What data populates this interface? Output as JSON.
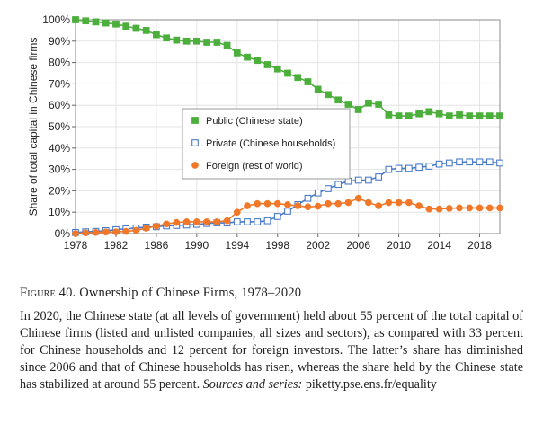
{
  "chart_data": {
    "type": "line",
    "ylabel": "Share of total capital in Chinese firms",
    "ylim": [
      0,
      100
    ],
    "yticks": [
      "0%",
      "10%",
      "20%",
      "30%",
      "40%",
      "50%",
      "60%",
      "70%",
      "80%",
      "90%",
      "100%"
    ],
    "xlim": [
      1978,
      2020
    ],
    "xticks": [
      "1978",
      "1982",
      "1986",
      "1990",
      "1994",
      "1998",
      "2002",
      "2006",
      "2010",
      "2014",
      "2018"
    ],
    "x": [
      1978,
      1979,
      1980,
      1981,
      1982,
      1983,
      1984,
      1985,
      1986,
      1987,
      1988,
      1989,
      1990,
      1991,
      1992,
      1993,
      1994,
      1995,
      1996,
      1997,
      1998,
      1999,
      2000,
      2001,
      2002,
      2003,
      2004,
      2005,
      2006,
      2007,
      2008,
      2009,
      2010,
      2011,
      2012,
      2013,
      2014,
      2015,
      2016,
      2017,
      2018,
      2019,
      2020
    ],
    "series": [
      {
        "name": "Public (Chinese state)",
        "color": "#4caf3c",
        "marker": "square-filled",
        "values": [
          100,
          99.5,
          99,
          98.5,
          98,
          97,
          96,
          95,
          93,
          91.5,
          90.5,
          90,
          90,
          89.5,
          89.5,
          88,
          84.5,
          82.5,
          81,
          79,
          77,
          75,
          73,
          71,
          67.5,
          65,
          62.5,
          60.5,
          58,
          61,
          60.5,
          55.5,
          55,
          55,
          56,
          57,
          56,
          55,
          55.5,
          55,
          55,
          55,
          55
        ]
      },
      {
        "name": "Private (Chinese households)",
        "color": "#4a7bc8",
        "marker": "square-open",
        "values": [
          0.5,
          0.8,
          1,
          1.3,
          1.8,
          2.2,
          2.6,
          3,
          3.2,
          3.6,
          3.8,
          4,
          4.3,
          4.7,
          5,
          5,
          5.5,
          5.5,
          5.5,
          6,
          8,
          10.5,
          13.5,
          16.5,
          19,
          21,
          23,
          24.5,
          25,
          25,
          26.5,
          30,
          30.5,
          30.5,
          31,
          31.5,
          32.5,
          33,
          33.5,
          33.5,
          33.5,
          33.5,
          33
        ]
      },
      {
        "name": "Foreign (rest of world)",
        "color": "#f07828",
        "marker": "circle-filled",
        "values": [
          0,
          0.3,
          0.5,
          0.7,
          0.8,
          1,
          1.5,
          2.5,
          3.5,
          4.5,
          5.2,
          5.5,
          5.5,
          5.5,
          5.5,
          6,
          10,
          13,
          14,
          14,
          14,
          13.5,
          13,
          12.5,
          12.8,
          14,
          14,
          14.5,
          16.5,
          14.5,
          13,
          14.5,
          14.5,
          14.5,
          13,
          11.5,
          11.5,
          11.8,
          12,
          12,
          12,
          12,
          12
        ]
      }
    ]
  },
  "caption": {
    "figure_label": "Figure",
    "figure_number": "40.",
    "figure_title": "Ownership of Chinese Firms, 1978–2020",
    "body": "In 2020, the Chinese state (at all levels of government) held about 55 percent of the total capital of Chinese firms (listed and unlisted companies, all sizes and sectors), as compared with 33 percent for Chinese households and 12 percent for foreign investors. The latter’s share has diminished since 2006 and that of Chinese households has risen, whereas the share held by the Chinese state has stabilized at around 55 percent.",
    "sources_label": "Sources and series:",
    "sources_url": "piketty.pse.ens.fr/equality"
  }
}
